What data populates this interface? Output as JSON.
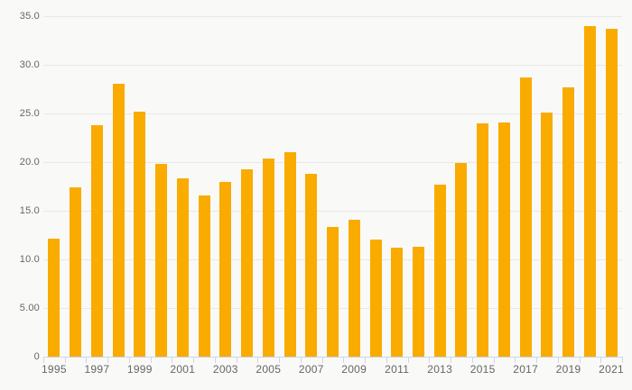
{
  "style": {
    "background_color": "#f9f9f8",
    "bar_color": "#F9AB00",
    "gridline_color": "#e8e8e8",
    "axis_line_color": "#ccd6eb",
    "label_color": "#666666"
  },
  "chart_data": {
    "type": "bar",
    "title": "",
    "xlabel": "",
    "ylabel": "",
    "categories": [
      1995,
      1996,
      1997,
      1998,
      1999,
      2000,
      2001,
      2002,
      2003,
      2004,
      2005,
      2006,
      2007,
      2008,
      2009,
      2010,
      2011,
      2012,
      2013,
      2014,
      2015,
      2016,
      2017,
      2018,
      2019,
      2020,
      2021
    ],
    "values": [
      12.1,
      17.4,
      23.8,
      28.1,
      25.2,
      19.8,
      18.3,
      16.6,
      18.0,
      19.3,
      20.4,
      21.0,
      18.8,
      13.3,
      14.1,
      12.0,
      11.2,
      11.3,
      17.7,
      19.9,
      24.0,
      24.1,
      28.7,
      25.1,
      27.7,
      34.0,
      33.7
    ],
    "ylim": [
      0,
      35
    ],
    "ytick_values": [
      0,
      5,
      10,
      15,
      20,
      25,
      30,
      35
    ],
    "ytick_labels": [
      "0",
      "5.00",
      "10.0",
      "15.0",
      "20.0",
      "25.0",
      "30.0",
      "35.0"
    ],
    "xtick_labels": [
      "1995",
      "1997",
      "1999",
      "2001",
      "2003",
      "2005",
      "2007",
      "2009",
      "2011",
      "2013",
      "2015",
      "2017",
      "2019",
      "2021"
    ],
    "x_label_every": 2,
    "grid": true,
    "legend": false
  }
}
